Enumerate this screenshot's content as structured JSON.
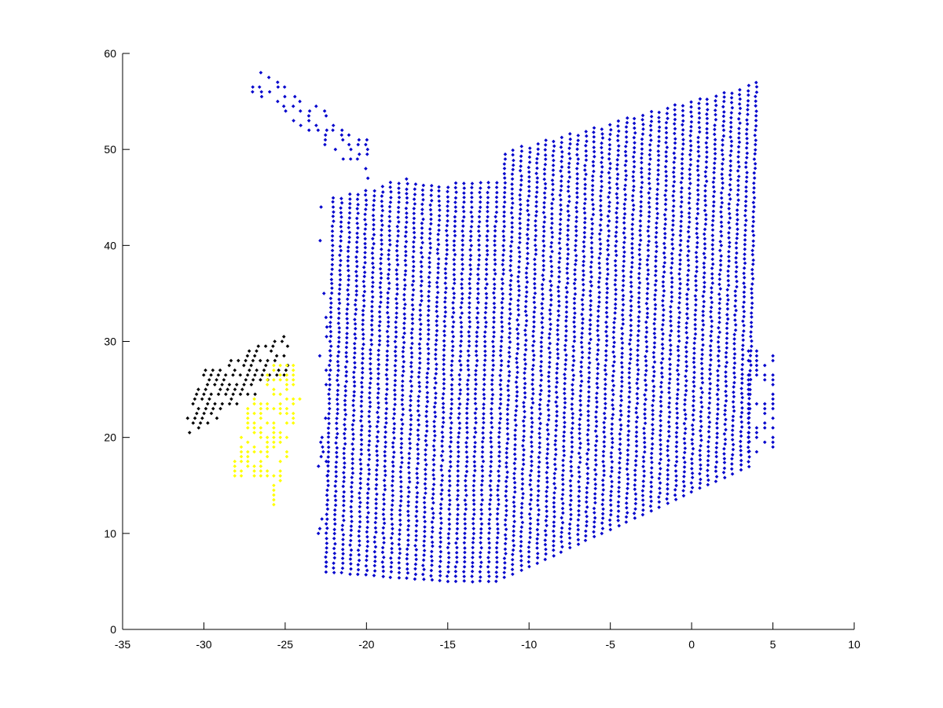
{
  "chart_data": {
    "type": "scatter",
    "title": "",
    "xlabel": "",
    "ylabel": "",
    "xlim": [
      -35,
      10
    ],
    "ylim": [
      0,
      60
    ],
    "grid": false,
    "legend": "none",
    "x_ticks": [
      "-35",
      "-30",
      "-25",
      "-20",
      "-15",
      "-10",
      "-5",
      "0",
      "5",
      "10"
    ],
    "y_ticks": [
      "0",
      "10",
      "20",
      "30",
      "40",
      "50",
      "60"
    ],
    "series": [
      {
        "name": "blue-cluster",
        "color": "#0000cc",
        "region": {
          "x": [
            -22.5,
            3.5
          ],
          "y_bottom_at_left": 6,
          "y_bottom_at_mid": 5,
          "y_bottom_at_right": 17,
          "y_top_at_left": 45,
          "y_top_at_right": 57,
          "notch_x": [
            -18,
            -12
          ],
          "notch_top": 46.5
        },
        "extras": {
          "north_arm": {
            "x": [
              -27,
              -20
            ],
            "y": [
              47,
              58.5
            ]
          },
          "east_tail": {
            "x": [
              3.5,
              5
            ],
            "y": [
              18.5,
              29
            ]
          }
        }
      },
      {
        "name": "black-cluster",
        "color": "#000000",
        "region": {
          "x": [
            -31,
            -24.8
          ],
          "y": [
            19,
            32.5
          ]
        }
      },
      {
        "name": "yellow-cluster",
        "color": "#ffff00",
        "region": {
          "x": [
            -28.5,
            -24
          ],
          "y": [
            13,
            27.5
          ]
        }
      }
    ]
  }
}
